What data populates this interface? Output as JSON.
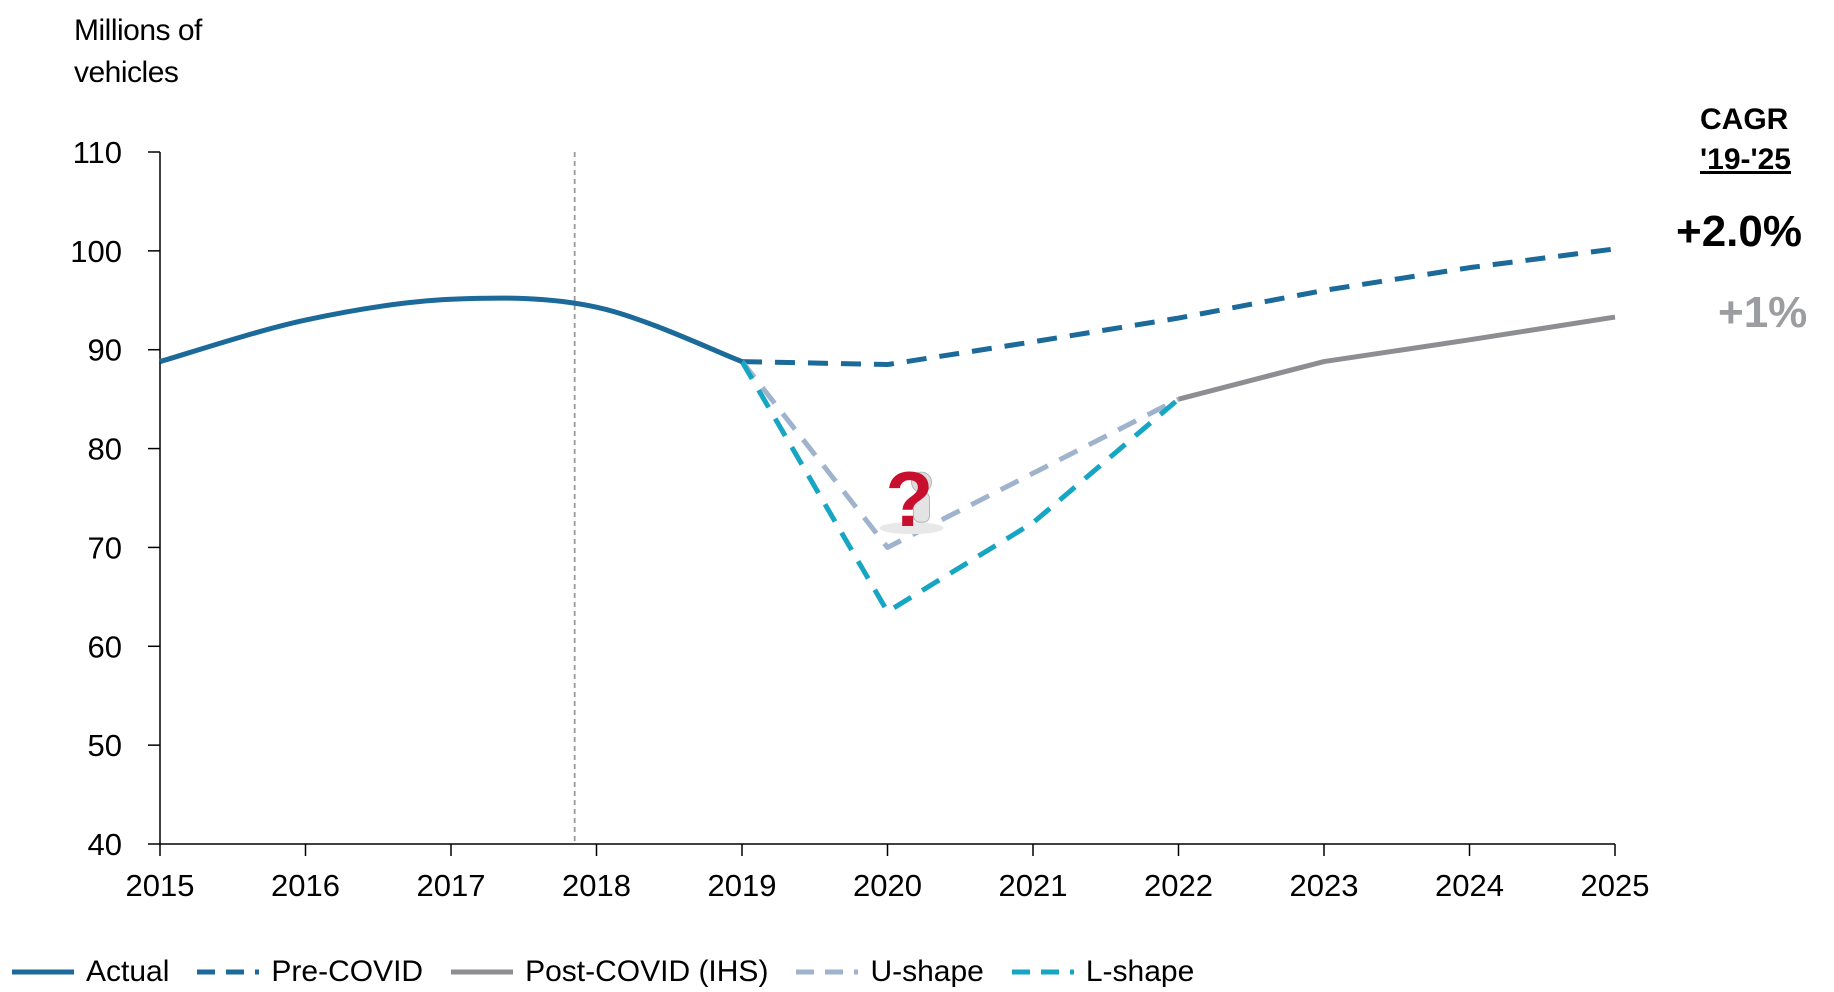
{
  "chart_data": {
    "type": "line",
    "ylabel_line1": "Millions of",
    "ylabel_line2": "vehicles",
    "ylim": [
      40,
      110
    ],
    "yticks": [
      "40",
      "50",
      "60",
      "70",
      "80",
      "90",
      "100",
      "110"
    ],
    "ytick_values": [
      40,
      50,
      60,
      70,
      80,
      90,
      100,
      110
    ],
    "xlim": [
      2015,
      2025
    ],
    "xticks": [
      "2015",
      "2016",
      "2017",
      "2018",
      "2019",
      "2020",
      "2021",
      "2022",
      "2023",
      "2024",
      "2025"
    ],
    "xtick_values": [
      2015,
      2016,
      2017,
      2018,
      2019,
      2020,
      2021,
      2022,
      2023,
      2024,
      2025
    ],
    "reference_line_x": 2017.85,
    "series": [
      {
        "name": "Actual",
        "style": "solid",
        "color": "#1b6a9a",
        "smooth": true,
        "x": [
          2015,
          2016,
          2017,
          2018,
          2019
        ],
        "y": [
          88.8,
          93.0,
          95.1,
          94.3,
          88.8
        ]
      },
      {
        "name": "Pre-COVID",
        "style": "dashed",
        "color": "#1b6a9a",
        "x": [
          2019,
          2020,
          2021,
          2022,
          2023,
          2024,
          2025
        ],
        "y": [
          88.8,
          88.5,
          90.8,
          93.2,
          96.0,
          98.3,
          100.2
        ]
      },
      {
        "name": "Post-COVID (IHS)",
        "style": "solid",
        "color": "#8c8e91",
        "x": [
          2022,
          2023,
          2024,
          2025
        ],
        "y": [
          85.0,
          88.8,
          91.0,
          93.3
        ]
      },
      {
        "name": "U-shape",
        "style": "dashed",
        "color": "#9fb3cc",
        "x": [
          2019,
          2020,
          2021,
          2022
        ],
        "y": [
          88.8,
          70.0,
          77.5,
          85.0
        ]
      },
      {
        "name": "L-shape",
        "style": "dashed",
        "color": "#16a6c4",
        "x": [
          2019,
          2020,
          2021,
          2022
        ],
        "y": [
          88.8,
          63.5,
          72.5,
          85.0
        ]
      }
    ],
    "legend_placement": "bottom",
    "cagr": {
      "title_line1": "CAGR",
      "title_line2": "'19-'25",
      "pre_covid": "+2.0%",
      "post_covid": "+1%"
    },
    "annotation_icon": "question-mark-figure-icon"
  }
}
